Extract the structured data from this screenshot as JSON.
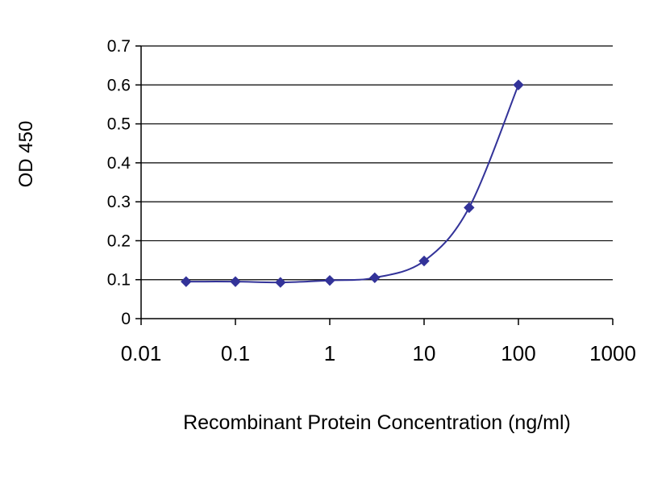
{
  "page": {
    "background": "#ffffff"
  },
  "chart_data": {
    "type": "line",
    "title": "",
    "xlabel": "Recombinant Protein Concentration (ng/ml)",
    "ylabel": "OD 450",
    "xscale": "log",
    "xlim": [
      0.01,
      1000
    ],
    "ylim": [
      0,
      0.7
    ],
    "x": [
      0.03,
      0.1,
      0.3,
      1,
      3,
      10,
      30,
      100
    ],
    "series": [
      {
        "name": "OD 450",
        "values": [
          0.095,
          0.095,
          0.093,
          0.098,
          0.105,
          0.148,
          0.285,
          0.6
        ]
      }
    ],
    "xticks": [
      0.01,
      0.1,
      1,
      10,
      100,
      1000
    ],
    "xtick_labels": [
      "0.01",
      "0.1",
      "1",
      "10",
      "100",
      "1000"
    ],
    "yticks": [
      0,
      0.1,
      0.2,
      0.3,
      0.4,
      0.5,
      0.6,
      0.7
    ],
    "ytick_labels": [
      "0",
      "0.1",
      "0.2",
      "0.3",
      "0.4",
      "0.5",
      "0.6",
      "0.7"
    ],
    "grid": "horizontal",
    "legend": "none",
    "line_color": "#333399",
    "marker": "diamond",
    "marker_size": 6,
    "grid_color": "#000000",
    "axis_color": "#000000",
    "text_color": "#000000"
  }
}
